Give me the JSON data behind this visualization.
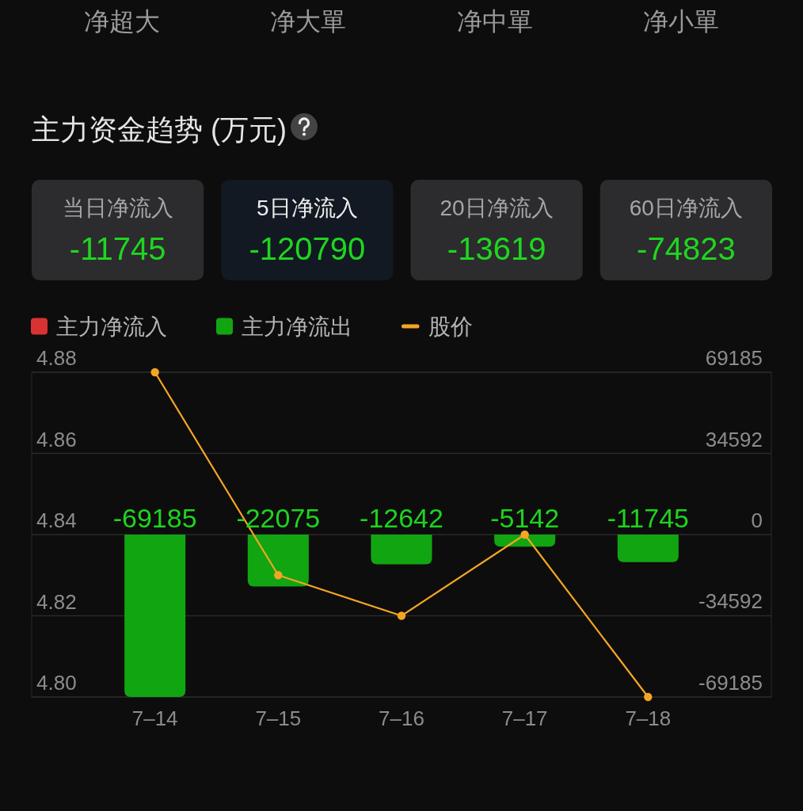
{
  "chart_data": [
    {
      "type": "other",
      "categories": [
        "净超大",
        "净大單",
        "净中單",
        "净小單"
      ]
    },
    {
      "type": "other",
      "title": "主力资金趋势 (万元)",
      "categories": [
        "当日净流入",
        "5日净流入",
        "20日净流入",
        "60日净流入"
      ],
      "values": [
        -11745,
        -120790,
        -13619,
        -74823
      ],
      "data_labels": true,
      "colors": [
        "#2c2c2e",
        "#121922",
        "#2c2c2e",
        "#2c2c2e"
      ]
    },
    {
      "type": "bar",
      "categories": [
        "7–14",
        "7–15",
        "7–16",
        "7–17",
        "7–18"
      ],
      "series": [
        {
          "name": "主力净流入",
          "color": "#d93232",
          "values": [
            null,
            null,
            null,
            null,
            null
          ],
          "axis": "y2"
        },
        {
          "name": "主力净流出",
          "color": "#12a512",
          "values": [
            -69185,
            -22075,
            -12642,
            -5142,
            -11745
          ],
          "value_labels": [
            "-69185",
            "-22075",
            "-12642",
            "-5142",
            "-11745"
          ],
          "axis": "y2"
        },
        {
          "name": "股价",
          "type": "line",
          "color": "#f5a524",
          "values": [
            4.88,
            4.83,
            4.82,
            4.84,
            4.8
          ],
          "axis": "y"
        }
      ],
      "stacked": true,
      "ylim": [
        4.8,
        4.88
      ],
      "yticks": [
        {
          "value": 4.8,
          "label": "4.80"
        },
        4.82,
        4.84,
        4.86,
        4.88
      ],
      "y2lim": [
        -69185,
        69185
      ],
      "y2ticks": [
        -69185,
        -34592,
        0,
        34592,
        69185
      ],
      "grid": "y",
      "legend": "top left",
      "marker": "circle"
    }
  ]
}
